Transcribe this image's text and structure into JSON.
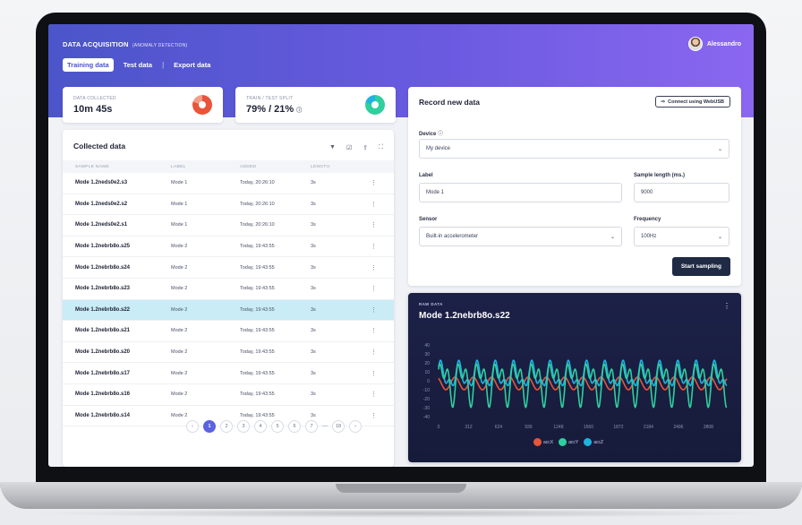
{
  "header": {
    "title": "DATA ACQUISITION",
    "subtitle": "(ANOMALY DETECTION)",
    "tabs": [
      "Training data",
      "Test data",
      "Export data"
    ],
    "user_name": "Alessandro"
  },
  "stats": {
    "collected_label": "DATA COLLECTED",
    "collected_value": "10m 45s",
    "split_label": "TRAIN / TEST SPLIT",
    "split_value": "79% / 21%",
    "split_train_fraction": 0.79
  },
  "collected": {
    "title": "Collected data",
    "columns": [
      "SAMPLE NAME",
      "LABEL",
      "ADDED",
      "LENGTH"
    ],
    "rows": [
      {
        "name": "Mode 1.2neds0e2.s3",
        "label": "Mode 1",
        "added": "Today, 20:26:10",
        "length": "3s"
      },
      {
        "name": "Mode 1.2neds0e2.s2",
        "label": "Mode 1",
        "added": "Today, 20:26:10",
        "length": "3s"
      },
      {
        "name": "Mode 1.2neds0e2.s1",
        "label": "Mode 1",
        "added": "Today, 20:26:10",
        "length": "3s"
      },
      {
        "name": "Mode 1.2nebrb8o.s25",
        "label": "Mode 2",
        "added": "Today, 19:43:55",
        "length": "3s"
      },
      {
        "name": "Mode 1.2nebrb8o.s24",
        "label": "Mode 2",
        "added": "Today, 19:43:55",
        "length": "3s"
      },
      {
        "name": "Mode 1.2nebrb8o.s23",
        "label": "Mode 2",
        "added": "Today, 19:43:55",
        "length": "3s"
      },
      {
        "name": "Mode 1.2nebrb8o.s22",
        "label": "Mode 2",
        "added": "Today, 19:43:55",
        "length": "3s"
      },
      {
        "name": "Mode 1.2nebrb8o.s21",
        "label": "Mode 2",
        "added": "Today, 19:43:55",
        "length": "3s"
      },
      {
        "name": "Mode 1.2nebrb8o.s20",
        "label": "Mode 2",
        "added": "Today, 19:43:55",
        "length": "3s"
      },
      {
        "name": "Mode 1.2nebrb8o.s17",
        "label": "Mode 2",
        "added": "Today, 19:43:55",
        "length": "3s"
      },
      {
        "name": "Mode 1.2nebrb8o.s16",
        "label": "Mode 2",
        "added": "Today, 19:43:55",
        "length": "3s"
      },
      {
        "name": "Mode 1.2nebrb8o.s14",
        "label": "Mode 2",
        "added": "Today, 19:43:55",
        "length": "3s"
      }
    ],
    "selected_row": 6,
    "pagination": [
      "1",
      "2",
      "3",
      "4",
      "5",
      "6",
      "7",
      "18"
    ],
    "pagination_ellipsis": "—",
    "active_page": "1"
  },
  "record": {
    "title": "Record new data",
    "connect_label": "Connect using WebUSB",
    "device_label": "Device",
    "device_value": "My device",
    "label_label": "Label",
    "label_value": "Mode 1",
    "sample_length_label": "Sample length (ms.)",
    "sample_length_value": "9000",
    "sensor_label": "Sensor",
    "sensor_value": "Built-in accelerometer",
    "frequency_label": "Frequency",
    "frequency_value": "100Hz",
    "start_label": "Start sampling"
  },
  "raw": {
    "label": "RAW DATA",
    "title": "Mode 1.2nebrb8o.s22"
  },
  "chart_data": {
    "type": "line",
    "title": "Mode 1.2nebrb8o.s22",
    "ylim": [
      -40,
      40
    ],
    "xlim": [
      0,
      3000
    ],
    "yticks": [
      40,
      30,
      20,
      10,
      0,
      -10,
      -20,
      -30,
      -40
    ],
    "xticks": [
      0,
      312,
      624,
      936,
      1248,
      1560,
      1872,
      2184,
      2496,
      2808
    ],
    "series": [
      {
        "name": "accX",
        "color": "#e8553a",
        "amplitude": 7,
        "offset": -3,
        "period": 190
      },
      {
        "name": "accY",
        "color": "#2fcf9e",
        "amplitude": 30,
        "offset": 0,
        "period": 190
      },
      {
        "name": "accZ",
        "color": "#1fb3e0",
        "amplitude": 18,
        "offset": 5,
        "period": 190
      }
    ]
  },
  "colors": {
    "accent": "#5a62e0",
    "selected_row": "#c9ecf7",
    "dark_button": "#1f2a44"
  }
}
